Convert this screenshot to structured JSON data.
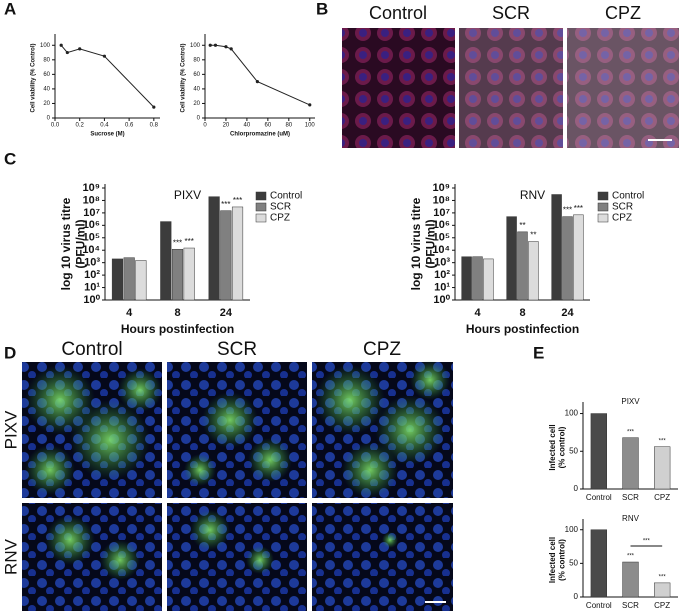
{
  "panels": {
    "letters": [
      "A",
      "B",
      "C",
      "D",
      "E"
    ],
    "b_labels": [
      "Control",
      "SCR",
      "CPZ"
    ],
    "d_columns": [
      "Control",
      "SCR",
      "CPZ"
    ],
    "d_rows": [
      "PIXV",
      "RNV"
    ]
  },
  "chart_data": [
    {
      "type": "line",
      "xlabel": "Sucrose (M)",
      "ylabel": "Cell viability (% Control)",
      "x": [
        0.05,
        0.1,
        0.2,
        0.4,
        0.8
      ],
      "values": [
        100,
        90,
        95,
        85,
        15
      ],
      "color": "#222222",
      "xlim": [
        0,
        0.85
      ],
      "xticks": [
        {
          "value": 0,
          "label": "0.0"
        },
        {
          "value": 0.2,
          "label": "0.2"
        },
        {
          "value": 0.4,
          "label": "0.4"
        },
        {
          "value": 0.6,
          "label": "0.6"
        },
        {
          "value": 0.8,
          "label": "0.8"
        }
      ],
      "ylim": [
        0,
        110
      ],
      "yticks": [
        0,
        20,
        40,
        60,
        80,
        100
      ]
    },
    {
      "type": "line",
      "xlabel": "Chlorpromazine (uM)",
      "ylabel": "Cell viability (% Control)",
      "x": [
        5,
        10,
        20,
        25,
        50,
        100
      ],
      "values": [
        100,
        100,
        98,
        95,
        50,
        18
      ],
      "color": "#222222",
      "xlim": [
        0,
        105
      ],
      "xticks": [
        0,
        20,
        40,
        60,
        80,
        100
      ],
      "ylim": [
        0,
        110
      ],
      "yticks": [
        0,
        20,
        40,
        60,
        80,
        100
      ]
    },
    {
      "type": "bar",
      "log": true,
      "title": "PIXV",
      "xlabel": "Hours postinfection",
      "ylabel": [
        "log 10 virus titre",
        "(PFU/ml)"
      ],
      "categories": [
        "4",
        "8",
        "24"
      ],
      "series": [
        {
          "name": "Control",
          "color": "#3c3c3c",
          "values": [
            2000,
            2000000,
            200000000
          ],
          "marks": [
            null,
            null,
            null
          ]
        },
        {
          "name": "SCR",
          "color": "#808080",
          "values": [
            2500,
            12000,
            15000000
          ],
          "marks": [
            null,
            "***",
            "***"
          ]
        },
        {
          "name": "CPZ",
          "color": "#dcdcdc",
          "values": [
            1500,
            15000,
            30000000
          ],
          "marks": [
            null,
            "***",
            "***"
          ]
        }
      ],
      "ylim": [
        1,
        1000000000
      ],
      "yticks": [
        {
          "value": 1,
          "label": "10⁰"
        },
        {
          "value": 10,
          "label": "10¹"
        },
        {
          "value": 100,
          "label": "10²"
        },
        {
          "value": 1000,
          "label": "10³"
        },
        {
          "value": 10000,
          "label": "10⁴"
        },
        {
          "value": 100000,
          "label": "10⁵"
        },
        {
          "value": 1000000,
          "label": "10⁶"
        },
        {
          "value": 10000000,
          "label": "10⁷"
        },
        {
          "value": 100000000,
          "label": "10⁸"
        },
        {
          "value": 1000000000,
          "label": "10⁹"
        }
      ]
    },
    {
      "type": "bar",
      "log": true,
      "title": "RNV",
      "xlabel": "Hours postinfection",
      "ylabel": [
        "log 10 virus titre",
        "(PFU/ml)"
      ],
      "categories": [
        "4",
        "8",
        "24"
      ],
      "series": [
        {
          "name": "Control",
          "color": "#3c3c3c",
          "values": [
            3000,
            5000000,
            300000000
          ],
          "marks": [
            null,
            null,
            null
          ]
        },
        {
          "name": "SCR",
          "color": "#808080",
          "values": [
            3000,
            300000,
            5000000
          ],
          "marks": [
            null,
            "**",
            "***"
          ]
        },
        {
          "name": "CPZ",
          "color": "#dcdcdc",
          "values": [
            2000,
            50000,
            7000000
          ],
          "marks": [
            null,
            "**",
            "***"
          ]
        }
      ],
      "ylim": [
        1,
        1000000000
      ],
      "yticks": [
        {
          "value": 1,
          "label": "10⁰"
        },
        {
          "value": 10,
          "label": "10¹"
        },
        {
          "value": 100,
          "label": "10²"
        },
        {
          "value": 1000,
          "label": "10³"
        },
        {
          "value": 10000,
          "label": "10⁴"
        },
        {
          "value": 100000,
          "label": "10⁵"
        },
        {
          "value": 1000000,
          "label": "10⁶"
        },
        {
          "value": 10000000,
          "label": "10⁷"
        },
        {
          "value": 100000000,
          "label": "10⁸"
        },
        {
          "value": 1000000000,
          "label": "10⁹"
        }
      ]
    },
    {
      "type": "bar",
      "title": "PIXV",
      "ylabel": [
        "Infected cell",
        "(% control)"
      ],
      "categories": [
        "Control",
        "SCR",
        "CPZ"
      ],
      "values": [
        100,
        68,
        56
      ],
      "colors": [
        "#4a4a4a",
        "#8c8c8c",
        "#d0d0d0"
      ],
      "marks": [
        null,
        "***",
        "***"
      ],
      "ylim": [
        0,
        110
      ],
      "yticks": [
        0,
        50,
        100
      ]
    },
    {
      "type": "bar",
      "title": "RNV",
      "ylabel": [
        "Infected cell",
        "(% control)"
      ],
      "categories": [
        "Control",
        "SCR",
        "CPZ"
      ],
      "values": [
        100,
        52,
        21
      ],
      "colors": [
        "#4a4a4a",
        "#8c8c8c",
        "#d0d0d0"
      ],
      "marks": [
        null,
        "***",
        "***"
      ],
      "bracket_label": "***",
      "ylim": [
        0,
        110
      ],
      "yticks": [
        0,
        50,
        100
      ]
    }
  ]
}
